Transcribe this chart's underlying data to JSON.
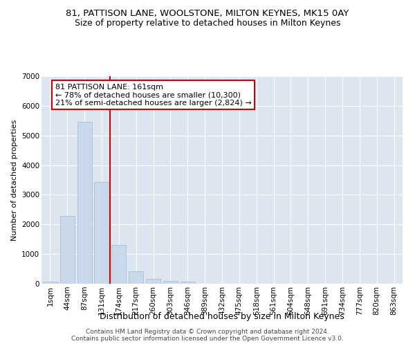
{
  "title": "81, PATTISON LANE, WOOLSTONE, MILTON KEYNES, MK15 0AY",
  "subtitle": "Size of property relative to detached houses in Milton Keynes",
  "xlabel": "Distribution of detached houses by size in Milton Keynes",
  "ylabel": "Number of detached properties",
  "bar_values": [
    75,
    2280,
    5460,
    3430,
    1310,
    430,
    160,
    90,
    60,
    0,
    0,
    0,
    0,
    0,
    0,
    0,
    0,
    0,
    0,
    0,
    0
  ],
  "bar_labels": [
    "1sqm",
    "44sqm",
    "87sqm",
    "131sqm",
    "174sqm",
    "217sqm",
    "260sqm",
    "303sqm",
    "346sqm",
    "389sqm",
    "432sqm",
    "475sqm",
    "518sqm",
    "561sqm",
    "604sqm",
    "648sqm",
    "691sqm",
    "734sqm",
    "777sqm",
    "820sqm",
    "863sqm"
  ],
  "bar_color": "#c9d8ea",
  "bar_edgecolor": "#a8bfd4",
  "vline_color": "#cc0000",
  "annotation_text": "81 PATTISON LANE: 161sqm\n← 78% of detached houses are smaller (10,300)\n21% of semi-detached houses are larger (2,824) →",
  "annotation_box_facecolor": "#ffffff",
  "annotation_box_edgecolor": "#cc0000",
  "ylim": [
    0,
    7000
  ],
  "yticks": [
    0,
    1000,
    2000,
    3000,
    4000,
    5000,
    6000,
    7000
  ],
  "background_color": "#dde6f0",
  "footer_text": "Contains HM Land Registry data © Crown copyright and database right 2024.\nContains public sector information licensed under the Open Government Licence v3.0.",
  "title_fontsize": 9.5,
  "subtitle_fontsize": 9,
  "xlabel_fontsize": 9,
  "ylabel_fontsize": 8,
  "tick_fontsize": 7.5,
  "annotation_fontsize": 8,
  "footer_fontsize": 6.5
}
